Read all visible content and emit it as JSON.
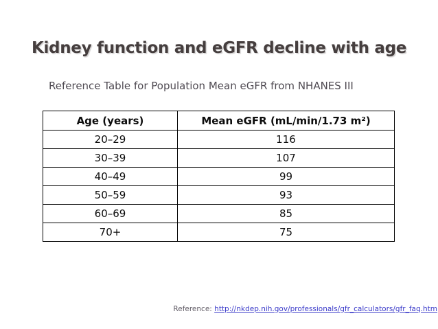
{
  "slide": {
    "title": "Kidney function and eGFR decline with age",
    "subtitle": "Reference Table for Population Mean eGFR from NHANES III"
  },
  "table": {
    "headers": [
      "Age (years)",
      "Mean eGFR (mL/min/1.73 m²)"
    ],
    "rows": [
      {
        "age": "20–29",
        "egfr": "116"
      },
      {
        "age": "30–39",
        "egfr": "107"
      },
      {
        "age": "40–49",
        "egfr": "99"
      },
      {
        "age": "50–59",
        "egfr": "93"
      },
      {
        "age": "60–69",
        "egfr": "85"
      },
      {
        "age": "70+",
        "egfr": "75"
      }
    ]
  },
  "reference": {
    "label": "Reference:",
    "url": "http://nkdep.nih.gov/professionals/gfr_calculators/gfr_faq.htm"
  },
  "colors": {
    "title_text": "#453e3e",
    "subtitle_text": "#4f4a52",
    "table_border": "#000000",
    "reference_label": "#615c66",
    "link": "#3a3ac9",
    "background": "#ffffff"
  },
  "chart_data": {
    "type": "table",
    "title": "Reference Table for Population Mean eGFR from NHANES III",
    "columns": [
      "Age (years)",
      "Mean eGFR (mL/min/1.73 m²)"
    ],
    "categories": [
      "20–29",
      "30–39",
      "40–49",
      "50–59",
      "60–69",
      "70+"
    ],
    "values": [
      116,
      107,
      99,
      93,
      85,
      75
    ]
  }
}
